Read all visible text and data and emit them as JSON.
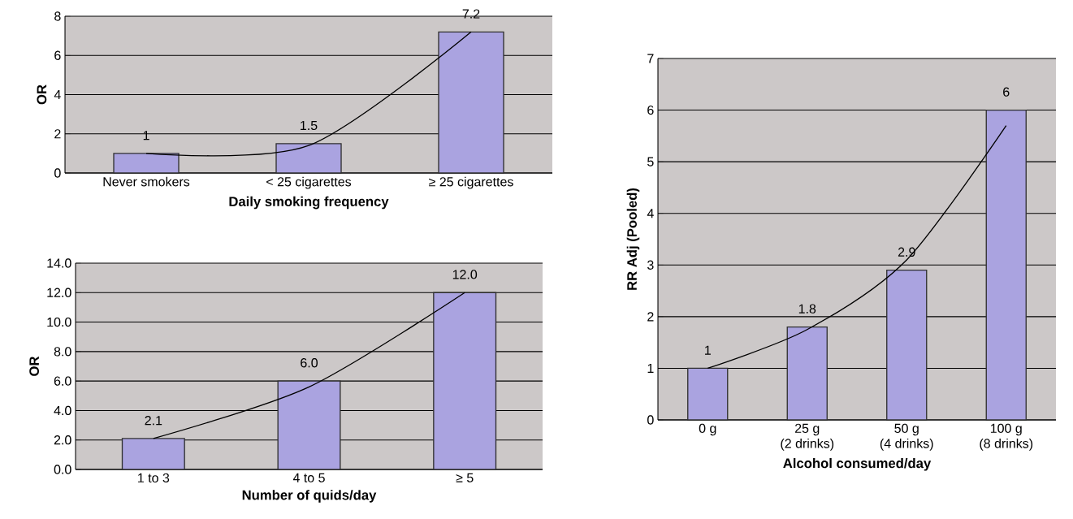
{
  "chart_data": [
    {
      "type": "bar",
      "xlabel": "Daily smoking frequency",
      "ylabel": "OR",
      "categories": [
        "Never smokers",
        "< 25 cigarettes",
        "≥ 25 cigarettes"
      ],
      "ylim": [
        0,
        8
      ],
      "yticks": [
        0,
        2,
        4,
        6,
        8
      ],
      "grid": "y",
      "series": [
        {
          "color": "#aaa3e0",
          "values": [
            1,
            1.5,
            7.2
          ],
          "value_labels": [
            "1",
            "1.5",
            "7.2"
          ]
        },
        {
          "type": "line",
          "color": "#000000",
          "values": [
            1,
            1.4,
            7.2
          ]
        }
      ]
    },
    {
      "type": "bar",
      "xlabel": "Number of quids/day",
      "ylabel": "OR",
      "categories": [
        "1 to 3",
        "4 to 5",
        "≥ 5"
      ],
      "ylim": [
        0,
        14
      ],
      "yticks": [
        {
          "value": 0,
          "label": "0.0"
        },
        {
          "value": 2,
          "label": "2.0"
        },
        {
          "value": 4,
          "label": "4.0"
        },
        {
          "value": 6,
          "label": "6.0"
        },
        {
          "value": 8,
          "label": "8.0"
        },
        {
          "value": 10,
          "label": "10.0"
        },
        {
          "value": 12,
          "label": "12.0"
        },
        {
          "value": 14,
          "label": "14.0"
        }
      ],
      "grid": "y",
      "series": [
        {
          "color": "#aaa3e0",
          "values": [
            2.1,
            6,
            12
          ],
          "value_labels": [
            "2.1",
            "6.0",
            "12.0"
          ]
        },
        {
          "type": "line",
          "color": "#000000",
          "values": [
            2.1,
            5.6,
            12
          ]
        }
      ]
    },
    {
      "type": "bar",
      "xlabel": "Alcohol consumed/day",
      "ylabel": "RR Adj (Pooled)",
      "categories": [
        "0 g",
        "25 g\n(2 drinks)",
        "50 g\n(4 drinks)",
        "100 g\n(8 drinks)"
      ],
      "ylim": [
        0,
        7
      ],
      "yticks": [
        0,
        1,
        2,
        3,
        4,
        5,
        6,
        7
      ],
      "grid": "y",
      "series": [
        {
          "color": "#aaa3e0",
          "values": [
            1,
            1.8,
            2.9,
            6
          ],
          "value_labels": [
            "1",
            "1.8",
            "2.9",
            "6"
          ]
        },
        {
          "type": "line",
          "color": "#000000",
          "values": [
            1,
            1.75,
            3.1,
            5.7
          ]
        }
      ]
    }
  ]
}
